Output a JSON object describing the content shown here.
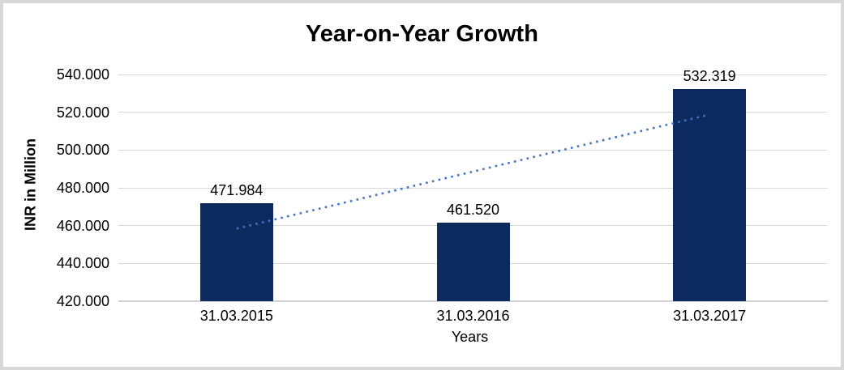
{
  "chart_data": {
    "type": "bar",
    "title": "Year-on-Year Growth",
    "xlabel": "Years",
    "ylabel": "INR in Million",
    "categories": [
      "31.03.2015",
      "31.03.2016",
      "31.03.2017"
    ],
    "values": [
      471.984,
      461.52,
      532.319
    ],
    "data_labels": [
      "471.984",
      "461.520",
      "532.319"
    ],
    "ylim": [
      420,
      540
    ],
    "ytick_step": 20,
    "ytick_labels": [
      "420.000",
      "440.000",
      "460.000",
      "480.000",
      "500.000",
      "520.000",
      "540.000"
    ],
    "grid": true,
    "legend": "none",
    "trendline": {
      "style": "dotted",
      "color": "#4472c4",
      "start_value": 458.4,
      "end_value": 518.8
    },
    "colors": {
      "bar_fill": "#0c2a5d",
      "gridline": "#d9d9d9",
      "frame_border": "#d8d8d8",
      "text": "#000000"
    }
  }
}
